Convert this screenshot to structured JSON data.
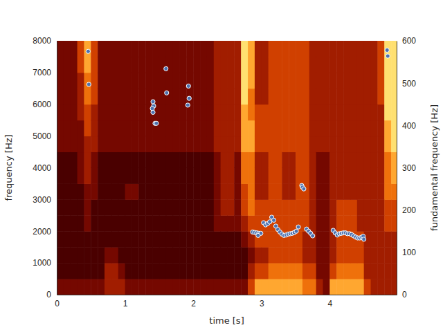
{
  "chart_data": {
    "type": "spectrogram",
    "xlabel": "time [s]",
    "ylabel": "frequency [Hz]",
    "y2label": "fundamental frequency [Hz]",
    "xlim": [
      0,
      4.98
    ],
    "xticks": [
      0,
      1,
      2,
      3,
      4
    ],
    "ylim": [
      0,
      8000
    ],
    "yticks": [
      0,
      1000,
      2000,
      3000,
      4000,
      5000,
      6000,
      7000,
      8000
    ],
    "y2lim": [
      0,
      600
    ],
    "y2ticks": [
      0,
      100,
      200,
      300,
      400,
      500,
      600
    ],
    "spectrogram": {
      "time_bins": [
        0,
        0.1,
        0.2,
        0.3,
        0.4,
        0.5,
        0.6,
        0.7,
        0.8,
        0.9,
        1.0,
        1.1,
        1.2,
        1.3,
        1.4,
        1.5,
        1.6,
        1.7,
        1.8,
        1.9,
        2.0,
        2.1,
        2.2,
        2.3,
        2.4,
        2.5,
        2.6,
        2.7,
        2.8,
        2.9,
        3.0,
        3.1,
        3.2,
        3.3,
        3.4,
        3.5,
        3.6,
        3.7,
        3.8,
        3.9,
        4.0,
        4.1,
        4.2,
        4.3,
        4.4,
        4.5,
        4.6,
        4.7,
        4.8,
        4.9,
        5.0
      ],
      "freq_bins": [
        0,
        500,
        1000,
        1500,
        2000,
        2500,
        3000,
        3500,
        4000,
        4500,
        5000,
        5500,
        6000,
        6500,
        7000,
        7500,
        8000
      ],
      "power_range": [
        0,
        10
      ],
      "power": [
        [
          4,
          3,
          3,
          3,
          3,
          3,
          3,
          3,
          3,
          4,
          4,
          4,
          4,
          4,
          4,
          4
        ],
        [
          4,
          3,
          3,
          3,
          3,
          3,
          3,
          3,
          3,
          4,
          4,
          4,
          4,
          4,
          4,
          4
        ],
        [
          4,
          3,
          3,
          3,
          3,
          3,
          3,
          3,
          3,
          4,
          4,
          4,
          4,
          4,
          4,
          4
        ],
        [
          4,
          3,
          3,
          3,
          3,
          3,
          3,
          4,
          4,
          4,
          4,
          5,
          5,
          5,
          6,
          6
        ],
        [
          4,
          3,
          3,
          3,
          4,
          4,
          4,
          5,
          5,
          5,
          6,
          6,
          7,
          7,
          8,
          8
        ],
        [
          4,
          3,
          3,
          3,
          3,
          3,
          4,
          4,
          4,
          5,
          5,
          5,
          6,
          6,
          6,
          6
        ],
        [
          4,
          3,
          3,
          3,
          3,
          3,
          3,
          3,
          3,
          4,
          4,
          4,
          4,
          4,
          4,
          4
        ],
        [
          5,
          5,
          4,
          3,
          3,
          3,
          3,
          3,
          3,
          4,
          4,
          4,
          4,
          4,
          4,
          4
        ],
        [
          5,
          5,
          4,
          3,
          3,
          3,
          3,
          3,
          3,
          4,
          4,
          4,
          4,
          4,
          4,
          4
        ],
        [
          5,
          4,
          3,
          3,
          3,
          3,
          3,
          3,
          3,
          4,
          4,
          4,
          4,
          4,
          4,
          4
        ],
        [
          4,
          3,
          3,
          3,
          3,
          3,
          4,
          3,
          3,
          4,
          4,
          4,
          4,
          4,
          4,
          4
        ],
        [
          4,
          3,
          3,
          3,
          3,
          3,
          4,
          3,
          3,
          4,
          4,
          4,
          4,
          4,
          4,
          4
        ],
        [
          4,
          3,
          3,
          3,
          3,
          3,
          3,
          3,
          3,
          4,
          4,
          4,
          4,
          4,
          4,
          4
        ],
        [
          4,
          3,
          3,
          3,
          3,
          3,
          3,
          3,
          3,
          4,
          4,
          4,
          4,
          4,
          4,
          4
        ],
        [
          4,
          3,
          3,
          3,
          3,
          3,
          3,
          3,
          3,
          4,
          4,
          4,
          4,
          4,
          4,
          4
        ],
        [
          4,
          3,
          3,
          3,
          3,
          3,
          3,
          3,
          3,
          4,
          4,
          4,
          4,
          4,
          4,
          4
        ],
        [
          4,
          3,
          3,
          3,
          3,
          3,
          3,
          3,
          3,
          4,
          4,
          4,
          4,
          4,
          4,
          4
        ],
        [
          4,
          3,
          3,
          3,
          3,
          3,
          3,
          3,
          3,
          4,
          4,
          4,
          4,
          4,
          4,
          4
        ],
        [
          4,
          3,
          3,
          3,
          3,
          3,
          3,
          3,
          3,
          4,
          4,
          4,
          4,
          4,
          4,
          4
        ],
        [
          4,
          3,
          3,
          3,
          3,
          3,
          3,
          3,
          3,
          4,
          4,
          4,
          4,
          4,
          4,
          4
        ],
        [
          4,
          3,
          3,
          3,
          3,
          3,
          3,
          3,
          3,
          4,
          4,
          4,
          4,
          4,
          4,
          4
        ],
        [
          4,
          3,
          3,
          3,
          3,
          3,
          3,
          3,
          3,
          4,
          4,
          4,
          4,
          4,
          4,
          4
        ],
        [
          4,
          3,
          3,
          3,
          3,
          3,
          3,
          3,
          3,
          4,
          4,
          4,
          4,
          4,
          4,
          4
        ],
        [
          4,
          3,
          3,
          3,
          4,
          4,
          4,
          4,
          4,
          5,
          5,
          5,
          5,
          5,
          5,
          5
        ],
        [
          4,
          3,
          3,
          3,
          4,
          5,
          5,
          5,
          5,
          5,
          5,
          5,
          5,
          5,
          5,
          5
        ],
        [
          4,
          3,
          3,
          3,
          4,
          5,
          5,
          5,
          5,
          5,
          5,
          5,
          5,
          5,
          5,
          5
        ],
        [
          4,
          3,
          3,
          3,
          4,
          4,
          4,
          4,
          4,
          5,
          5,
          5,
          5,
          5,
          5,
          5
        ],
        [
          4,
          3,
          3,
          4,
          5,
          6,
          6,
          7,
          7,
          8,
          8,
          8,
          9,
          9,
          9,
          9
        ],
        [
          6,
          5,
          4,
          5,
          6,
          7,
          7,
          7,
          7,
          8,
          8,
          7,
          7,
          8,
          8,
          8
        ],
        [
          8,
          6,
          5,
          6,
          6,
          6,
          5,
          5,
          5,
          6,
          6,
          6,
          5,
          5,
          5,
          5
        ],
        [
          8,
          6,
          5,
          6,
          6,
          6,
          5,
          5,
          5,
          6,
          6,
          6,
          5,
          5,
          5,
          5
        ],
        [
          8,
          7,
          6,
          6,
          6,
          6,
          6,
          6,
          6,
          6,
          6,
          6,
          6,
          6,
          6,
          6
        ],
        [
          8,
          7,
          6,
          6,
          6,
          6,
          6,
          6,
          6,
          6,
          6,
          6,
          6,
          6,
          6,
          6
        ],
        [
          8,
          7,
          6,
          6,
          6,
          6,
          5,
          5,
          5,
          6,
          6,
          6,
          6,
          6,
          6,
          6
        ],
        [
          8,
          7,
          6,
          6,
          6,
          6,
          5,
          5,
          5,
          6,
          6,
          6,
          6,
          6,
          6,
          6
        ],
        [
          8,
          7,
          6,
          6,
          6,
          6,
          6,
          6,
          6,
          6,
          6,
          6,
          6,
          6,
          6,
          6
        ],
        [
          7,
          6,
          5,
          5,
          6,
          6,
          6,
          6,
          6,
          6,
          6,
          6,
          6,
          6,
          6,
          6
        ],
        [
          7,
          6,
          5,
          5,
          5,
          5,
          5,
          5,
          5,
          5,
          5,
          5,
          5,
          5,
          5,
          5
        ],
        [
          5,
          4,
          4,
          4,
          4,
          4,
          4,
          4,
          4,
          5,
          5,
          5,
          5,
          5,
          5,
          5
        ],
        [
          4,
          4,
          4,
          4,
          4,
          4,
          4,
          4,
          4,
          5,
          5,
          5,
          5,
          5,
          5,
          5
        ],
        [
          8,
          6,
          5,
          5,
          5,
          5,
          5,
          5,
          5,
          5,
          5,
          5,
          5,
          5,
          5,
          5
        ],
        [
          8,
          7,
          6,
          6,
          6,
          6,
          5,
          5,
          5,
          5,
          5,
          5,
          5,
          5,
          5,
          5
        ],
        [
          8,
          7,
          6,
          6,
          6,
          6,
          5,
          5,
          5,
          5,
          5,
          5,
          5,
          5,
          5,
          5
        ],
        [
          8,
          7,
          6,
          6,
          6,
          6,
          5,
          5,
          5,
          5,
          5,
          5,
          5,
          5,
          5,
          5
        ],
        [
          8,
          7,
          6,
          6,
          5,
          5,
          5,
          5,
          5,
          5,
          5,
          5,
          5,
          5,
          5,
          5
        ],
        [
          6,
          5,
          5,
          5,
          5,
          5,
          5,
          5,
          5,
          5,
          5,
          5,
          5,
          5,
          5,
          5
        ],
        [
          5,
          5,
          5,
          5,
          5,
          5,
          5,
          5,
          5,
          5,
          5,
          5,
          5,
          5,
          5,
          5
        ],
        [
          5,
          5,
          5,
          5,
          5,
          5,
          5,
          5,
          5,
          5,
          5,
          5,
          6,
          6,
          6,
          6
        ],
        [
          5,
          5,
          5,
          5,
          6,
          6,
          7,
          7,
          7,
          8,
          8,
          9,
          9,
          9,
          9,
          9
        ],
        [
          5,
          5,
          5,
          5,
          6,
          6,
          7,
          8,
          8,
          9,
          9,
          9,
          9,
          9,
          9,
          9
        ]
      ]
    },
    "series": [
      {
        "type": "scatter",
        "axis": "y2",
        "color": "#4c72b0",
        "marker": "circle",
        "x": [
          0.46,
          0.47,
          1.41,
          1.42,
          1.4,
          1.41,
          1.44,
          1.46,
          1.6,
          1.61,
          1.93,
          1.94,
          1.92,
          2.87,
          2.9,
          2.93,
          2.96,
          2.99,
          2.95,
          3.03,
          3.06,
          3.09,
          3.12,
          3.15,
          3.18,
          3.21,
          3.24,
          3.27,
          3.3,
          3.33,
          3.36,
          3.39,
          3.42,
          3.45,
          3.48,
          3.51,
          3.54,
          3.59,
          3.6,
          3.62,
          3.66,
          3.69,
          3.72,
          3.75,
          4.05,
          4.08,
          4.11,
          4.14,
          4.17,
          4.2,
          4.23,
          4.26,
          4.29,
          4.32,
          4.35,
          4.38,
          4.41,
          4.44,
          4.47,
          4.49,
          4.5,
          4.84,
          4.85
        ],
        "values": [
          575,
          497,
          456,
          446,
          440,
          431,
          405,
          405,
          534,
          477,
          493,
          464,
          448,
          148,
          147,
          146,
          145,
          145,
          140,
          170,
          165,
          168,
          172,
          183,
          176,
          162,
          154,
          148,
          143,
          140,
          141,
          143,
          144,
          145,
          147,
          150,
          160,
          258,
          254,
          250,
          155,
          150,
          145,
          139,
          152,
          146,
          141,
          144,
          145,
          146,
          146,
          144,
          144,
          142,
          139,
          136,
          134,
          134,
          136,
          138,
          131,
          578,
          564
        ]
      }
    ]
  }
}
